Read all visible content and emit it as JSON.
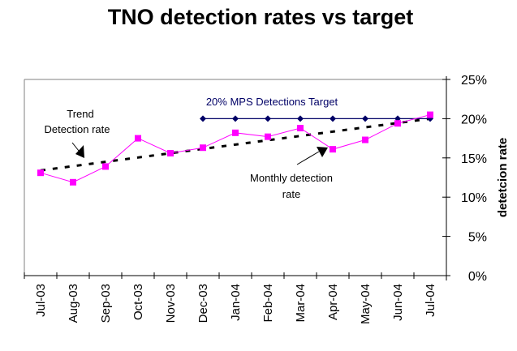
{
  "chart_data": {
    "type": "line",
    "title": "TNO detection rates vs target",
    "xlabel": "",
    "ylabel": "detetcion rate",
    "y_axis_side": "right",
    "ylim": [
      0,
      25
    ],
    "yticks": [
      0,
      5,
      10,
      15,
      20,
      25
    ],
    "ytick_labels": [
      "0%",
      "5%",
      "10%",
      "15%",
      "20%",
      "25%"
    ],
    "grid": false,
    "legend": "none",
    "categories": [
      "Jul-03",
      "Aug-03",
      "Sep-03",
      "Oct-03",
      "Nov-03",
      "Dec-03",
      "Jan-04",
      "Feb-04",
      "Mar-04",
      "Apr-04",
      "May-04",
      "Jun-04",
      "Jul-04"
    ],
    "series": [
      {
        "name": "Monthly detection rate",
        "color": "#ff00ff",
        "marker": "square",
        "values": [
          13.1,
          11.9,
          13.9,
          17.5,
          15.6,
          16.3,
          18.2,
          17.7,
          18.8,
          16.1,
          17.3,
          19.4,
          20.5
        ]
      },
      {
        "name": "20% MPS Detections Target",
        "color": "#000066",
        "marker": "diamond",
        "values": [
          null,
          null,
          null,
          null,
          null,
          20,
          20,
          20,
          20,
          20,
          20,
          20,
          20
        ]
      },
      {
        "name": "Trend Detection rate",
        "color": "#000000",
        "marker": "none",
        "style": "dashed",
        "values": [
          13.4,
          13.95,
          14.5,
          15.05,
          15.6,
          16.15,
          16.7,
          17.25,
          17.8,
          18.35,
          18.9,
          19.45,
          20.0
        ]
      }
    ],
    "annotations": [
      {
        "text_lines": [
          "Trend",
          "Detection rate"
        ],
        "points_to": "Trend Detection rate"
      },
      {
        "text_lines": [
          "20% MPS Detections Target"
        ],
        "points_to": "20% MPS Detections Target"
      },
      {
        "text_lines": [
          "Monthly detection",
          "rate"
        ],
        "points_to": "Monthly detection rate"
      }
    ]
  }
}
